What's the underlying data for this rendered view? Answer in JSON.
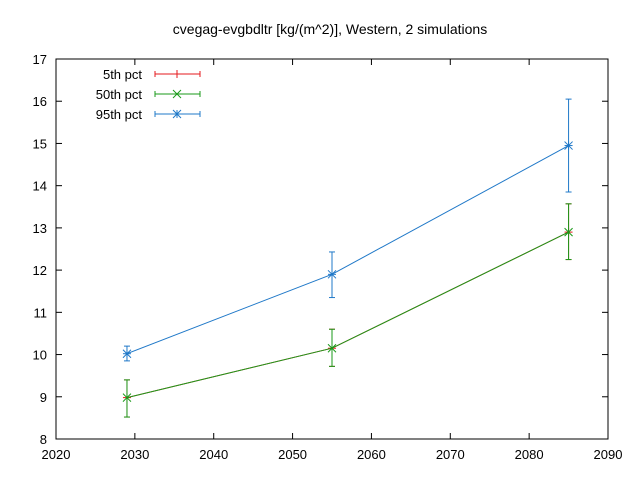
{
  "chart_data": {
    "type": "line",
    "title": "cvegag-evgbdltr [kg/(m^2)], Western, 2 simulations",
    "xlabel": "",
    "ylabel": "",
    "xlim": [
      2020,
      2090
    ],
    "ylim": [
      8,
      17
    ],
    "xticks": [
      2020,
      2030,
      2040,
      2050,
      2060,
      2070,
      2080,
      2090
    ],
    "yticks": [
      8,
      9,
      10,
      11,
      12,
      13,
      14,
      15,
      16,
      17
    ],
    "grid": false,
    "legend_position": "top-left",
    "x": [
      2029,
      2055,
      2085
    ],
    "series": [
      {
        "name": "5th pct",
        "color": "#e41a1c",
        "marker": "plus",
        "values": [
          8.98,
          10.15,
          12.9
        ],
        "err_low": [
          8.52,
          9.72,
          12.25
        ],
        "err_high": [
          9.4,
          10.6,
          13.57
        ]
      },
      {
        "name": "50th pct",
        "color": "#1a9a1a",
        "marker": "cross",
        "values": [
          8.98,
          10.15,
          12.9
        ],
        "err_low": [
          8.52,
          9.72,
          12.25
        ],
        "err_high": [
          9.4,
          10.6,
          13.57
        ]
      },
      {
        "name": "95th pct",
        "color": "#1f78c8",
        "marker": "star",
        "values": [
          10.02,
          11.9,
          14.95
        ],
        "err_low": [
          9.85,
          11.35,
          13.85
        ],
        "err_high": [
          10.2,
          12.43,
          16.05
        ]
      }
    ]
  }
}
